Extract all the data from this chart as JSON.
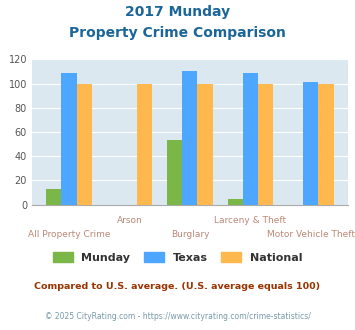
{
  "title_line1": "2017 Munday",
  "title_line2": "Property Crime Comparison",
  "categories": [
    "All Property Crime",
    "Arson",
    "Burglary",
    "Larceny & Theft",
    "Motor Vehicle Theft"
  ],
  "munday": [
    13,
    0,
    53,
    5,
    0
  ],
  "texas": [
    109,
    0,
    110,
    109,
    101
  ],
  "national": [
    100,
    100,
    100,
    100,
    100
  ],
  "munday_color": "#7ab648",
  "texas_color": "#4da6ff",
  "national_color": "#ffb84d",
  "ylim": [
    0,
    120
  ],
  "yticks": [
    0,
    20,
    40,
    60,
    80,
    100,
    120
  ],
  "xlabel_top": [
    "",
    "Arson",
    "",
    "Larceny & Theft",
    ""
  ],
  "xlabel_bottom": [
    "All Property Crime",
    "",
    "Burglary",
    "",
    "Motor Vehicle Theft"
  ],
  "legend_labels": [
    "Munday",
    "Texas",
    "National"
  ],
  "footnote1": "Compared to U.S. average. (U.S. average equals 100)",
  "footnote2": "© 2025 CityRating.com - https://www.cityrating.com/crime-statistics/",
  "title_color": "#1a6699",
  "xlabel_color": "#bb8877",
  "footnote1_color": "#993300",
  "footnote2_color": "#7799aa",
  "bg_color": "#dce8f0",
  "plot_bg_color": "#dce8f0",
  "outer_bg_color": "#ffffff"
}
